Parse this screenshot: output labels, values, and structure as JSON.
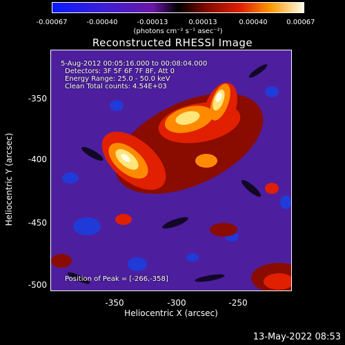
{
  "colorbar": {
    "labels": [
      "-0.00067",
      "-0.00040",
      "-0.00013",
      "0.00013",
      "0.00040",
      "0.00067"
    ],
    "unit_text": "(photons cm⁻² s⁻¹ asec⁻²)"
  },
  "title": "Reconstructed RHESSI Image",
  "overlay": {
    "line1": "5-Aug-2012 00:05:16.000 to 00:08:04.000",
    "line2": "Detectors: 3F 5F 6F 7F 8F, Att 0",
    "line3": "Energy Range: 25.0 - 50.0 keV",
    "line4": "Clean    Total counts: 4.54E+03",
    "peak": "Position of Peak = [-266,-358]"
  },
  "axes": {
    "xlabel": "Heliocentric X (arcsec)",
    "ylabel": "Heliocentric Y (arcsec)",
    "xticks": [
      "-350",
      "-300",
      "-250"
    ],
    "yticks": [
      "-350",
      "-400",
      "-450",
      "-500"
    ]
  },
  "footer": {
    "timestamp": "13-May-2022 08:53"
  }
}
